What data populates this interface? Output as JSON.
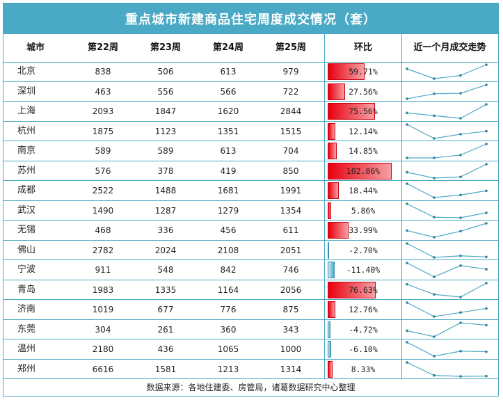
{
  "title": "重点城市新建商品住宅周度成交情况（套）",
  "headers": {
    "city": "城市",
    "w22": "第22周",
    "w23": "第23周",
    "w24": "第24周",
    "w25": "第25周",
    "ratio": "环比",
    "trend": "近一个月成交走势"
  },
  "footer": "数据来源：各地住建委、房管局，诸葛数据研究中心整理",
  "colors": {
    "accent": "#4aa9c4",
    "positive": "#e8000f",
    "negative": "#4aa9c4"
  },
  "chart_data": {
    "type": "table",
    "columns": [
      "第22周",
      "第23周",
      "第24周",
      "第25周",
      "环比"
    ],
    "rows": [
      {
        "city": "北京",
        "values": [
          838,
          506,
          613,
          979
        ],
        "ratio": 59.71,
        "ratio_label": "59.71%"
      },
      {
        "city": "深圳",
        "values": [
          463,
          556,
          566,
          722
        ],
        "ratio": 27.56,
        "ratio_label": "27.56%"
      },
      {
        "city": "上海",
        "values": [
          2093,
          1847,
          1620,
          2844
        ],
        "ratio": 75.56,
        "ratio_label": "75.56%"
      },
      {
        "city": "杭州",
        "values": [
          1875,
          1123,
          1351,
          1515
        ],
        "ratio": 12.14,
        "ratio_label": "12.14%"
      },
      {
        "city": "南京",
        "values": [
          589,
          589,
          613,
          704
        ],
        "ratio": 14.85,
        "ratio_label": "14.85%"
      },
      {
        "city": "苏州",
        "values": [
          576,
          378,
          419,
          850
        ],
        "ratio": 102.86,
        "ratio_label": "102.86%"
      },
      {
        "city": "成都",
        "values": [
          2522,
          1488,
          1681,
          1991
        ],
        "ratio": 18.44,
        "ratio_label": "18.44%"
      },
      {
        "city": "武汉",
        "values": [
          1490,
          1287,
          1279,
          1354
        ],
        "ratio": 5.86,
        "ratio_label": "5.86%"
      },
      {
        "city": "无锡",
        "values": [
          468,
          336,
          456,
          611
        ],
        "ratio": 33.99,
        "ratio_label": "33.99%"
      },
      {
        "city": "佛山",
        "values": [
          2782,
          2024,
          2108,
          2051
        ],
        "ratio": -2.7,
        "ratio_label": "-2.70%"
      },
      {
        "city": "宁波",
        "values": [
          911,
          548,
          842,
          746
        ],
        "ratio": -11.4,
        "ratio_label": "-11.40%"
      },
      {
        "city": "青岛",
        "values": [
          1983,
          1335,
          1164,
          2056
        ],
        "ratio": 76.63,
        "ratio_label": "76.63%"
      },
      {
        "city": "济南",
        "values": [
          1019,
          677,
          776,
          875
        ],
        "ratio": 12.76,
        "ratio_label": "12.76%"
      },
      {
        "city": "东莞",
        "values": [
          304,
          261,
          360,
          343
        ],
        "ratio": -4.72,
        "ratio_label": "-4.72%"
      },
      {
        "city": "温州",
        "values": [
          2180,
          436,
          1065,
          1000
        ],
        "ratio": -6.1,
        "ratio_label": "-6.10%"
      },
      {
        "city": "郑州",
        "values": [
          6616,
          1581,
          1213,
          1314
        ],
        "ratio": 8.33,
        "ratio_label": "8.33%"
      }
    ],
    "ratio_bar_max": 102.86
  }
}
